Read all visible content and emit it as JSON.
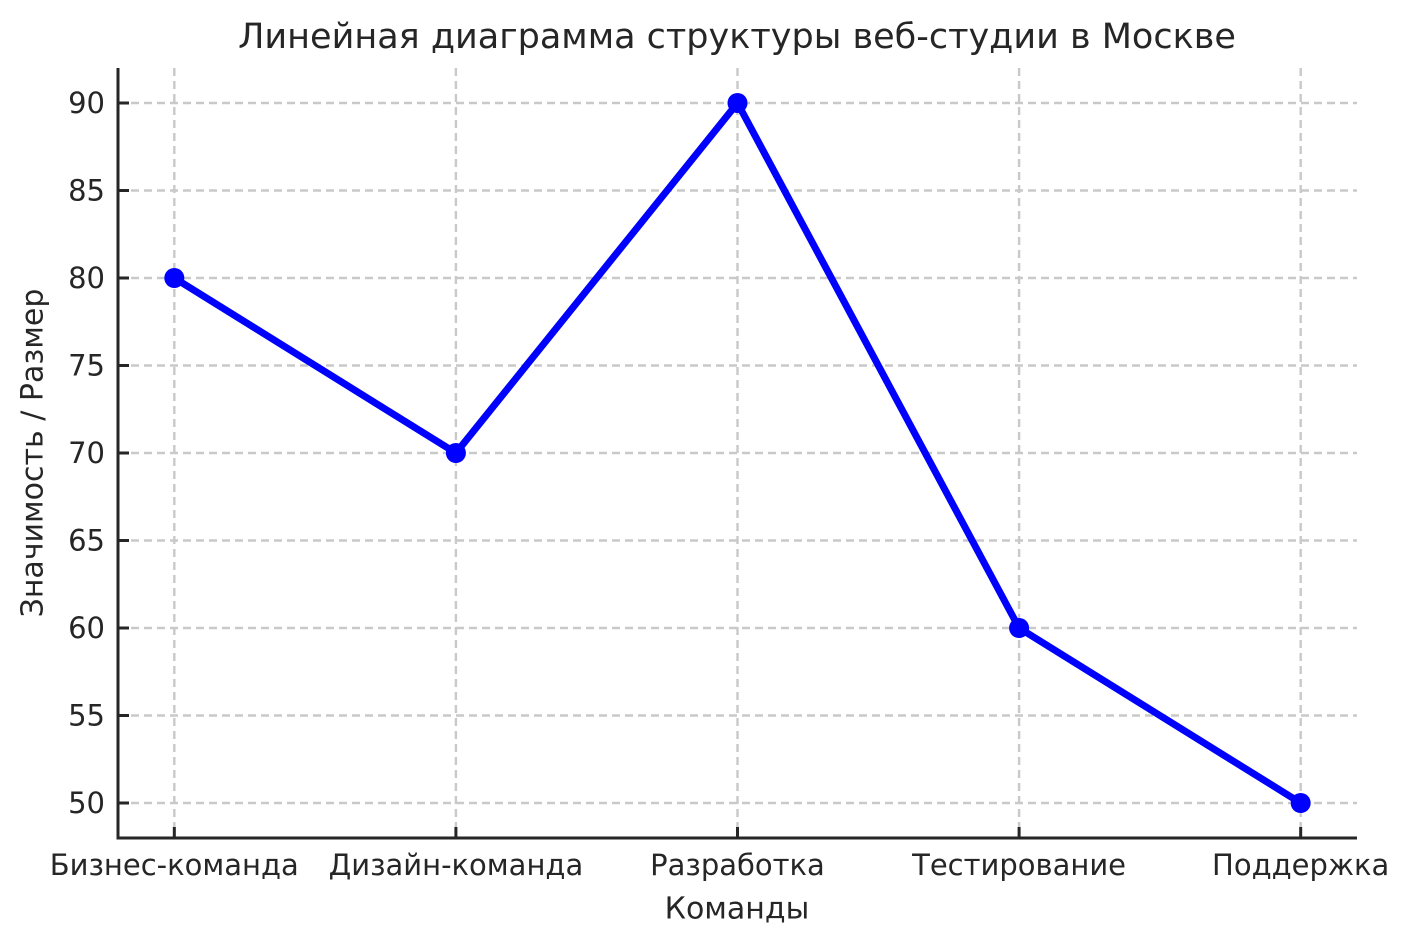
{
  "chart_data": {
    "type": "line",
    "title": "Линейная диаграмма структуры веб-студии в Москве",
    "xlabel": "Команды",
    "ylabel": "Значимость / Размер",
    "categories": [
      "Бизнес-команда",
      "Дизайн-команда",
      "Разработка",
      "Тестирование",
      "Поддержка"
    ],
    "values": [
      80,
      70,
      90,
      60,
      50
    ],
    "yticks": [
      50,
      55,
      60,
      65,
      70,
      75,
      80,
      85,
      90
    ],
    "ylim": [
      48,
      92
    ],
    "xlim": [
      -0.2,
      4.2
    ],
    "grid": true,
    "grid_style": "dashed",
    "legend_position": "none",
    "colors": {
      "line": "#0000ff",
      "marker": "#0000ff",
      "grid": "#c9c9c9",
      "spine": "#262626",
      "text": "#262626"
    }
  }
}
